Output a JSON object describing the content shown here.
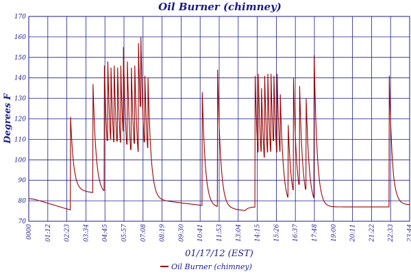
{
  "chart_data": {
    "type": "line",
    "title": "Oil Burner (chimney)",
    "xlabel": "01/17/12 (EST)",
    "ylabel": "Degrees F",
    "ylim": [
      70,
      170
    ],
    "yticks": [
      70,
      80,
      90,
      100,
      110,
      120,
      130,
      140,
      150,
      160,
      170
    ],
    "xlim": [
      "00:00",
      "24:00"
    ],
    "xtick_labels": [
      "0000",
      "01:12",
      "02:23",
      "03:34",
      "04:45",
      "05:57",
      "07:08",
      "08:19",
      "09:30",
      "10:41",
      "11:53",
      "13:04",
      "14:15",
      "15:26",
      "16:37",
      "17:48",
      "19:00",
      "20:11",
      "21:22",
      "22:33",
      "23:44"
    ],
    "grid": true,
    "legend_position": "bottom",
    "colors": {
      "series": "#990000",
      "grid": "#1a1a8c",
      "text": "#1a1a8c"
    },
    "series": [
      {
        "name": "Oil Burner (chimney)",
        "cycles": [
          {
            "on": "02:37",
            "peak": 121
          },
          {
            "on": "04:02",
            "peak": 137
          },
          {
            "on": "04:45",
            "peak": 146
          },
          {
            "on": "04:58",
            "peak": 148
          },
          {
            "on": "05:10",
            "peak": 145
          },
          {
            "on": "05:22",
            "peak": 146
          },
          {
            "on": "05:35",
            "peak": 145
          },
          {
            "on": "05:47",
            "peak": 146
          },
          {
            "on": "05:57",
            "peak": 155
          },
          {
            "on": "06:12",
            "peak": 148
          },
          {
            "on": "06:27",
            "peak": 145
          },
          {
            "on": "06:40",
            "peak": 146
          },
          {
            "on": "06:54",
            "peak": 157
          },
          {
            "on": "07:03",
            "peak": 160
          },
          {
            "on": "07:18",
            "peak": 141
          },
          {
            "on": "07:30",
            "peak": 140
          },
          {
            "on": "10:55",
            "peak": 133
          },
          {
            "on": "11:53",
            "peak": 144
          },
          {
            "on": "14:15",
            "peak": 141
          },
          {
            "on": "14:27",
            "peak": 142
          },
          {
            "on": "14:39",
            "peak": 135
          },
          {
            "on": "14:51",
            "peak": 141
          },
          {
            "on": "15:03",
            "peak": 142
          },
          {
            "on": "15:15",
            "peak": 142
          },
          {
            "on": "15:26",
            "peak": 141
          },
          {
            "on": "15:38",
            "peak": 142
          },
          {
            "on": "15:50",
            "peak": 132
          },
          {
            "on": "16:20",
            "peak": 117
          },
          {
            "on": "16:40",
            "peak": 140
          },
          {
            "on": "17:03",
            "peak": 136
          },
          {
            "on": "17:28",
            "peak": 130
          },
          {
            "on": "17:58",
            "peak": 151
          },
          {
            "on": "22:42",
            "peak": 141
          }
        ]
      }
    ]
  }
}
